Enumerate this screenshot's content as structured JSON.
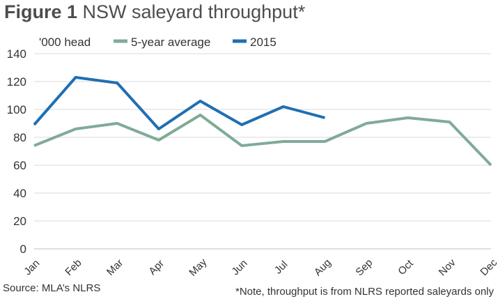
{
  "title": {
    "figure_label": "Figure 1",
    "text": "NSW saleyard throughput*"
  },
  "source": "Source: MLA’s NLRS",
  "footnote": "*Note, throughput is from NLRS reported saleyards only",
  "chart_data": {
    "type": "line",
    "ylabel": "'000 head",
    "ylim": [
      0,
      140
    ],
    "yticks": [
      0,
      20,
      40,
      60,
      80,
      100,
      120,
      140
    ],
    "grid": true,
    "legend_position": "top",
    "categories": [
      "Jan",
      "Feb",
      "Mar",
      "Apr",
      "May",
      "Jun",
      "Jul",
      "Aug",
      "Sep",
      "Oct",
      "Nov",
      "Dec"
    ],
    "series": [
      {
        "name": "5-year average",
        "color": "#7fab97",
        "values": [
          74,
          86,
          90,
          78,
          96,
          74,
          77,
          77,
          90,
          94,
          91,
          60
        ]
      },
      {
        "name": "2015",
        "color": "#1f6fb2",
        "values": [
          89,
          123,
          119,
          86,
          106,
          89,
          102,
          94,
          null,
          null,
          null,
          null
        ]
      }
    ]
  }
}
